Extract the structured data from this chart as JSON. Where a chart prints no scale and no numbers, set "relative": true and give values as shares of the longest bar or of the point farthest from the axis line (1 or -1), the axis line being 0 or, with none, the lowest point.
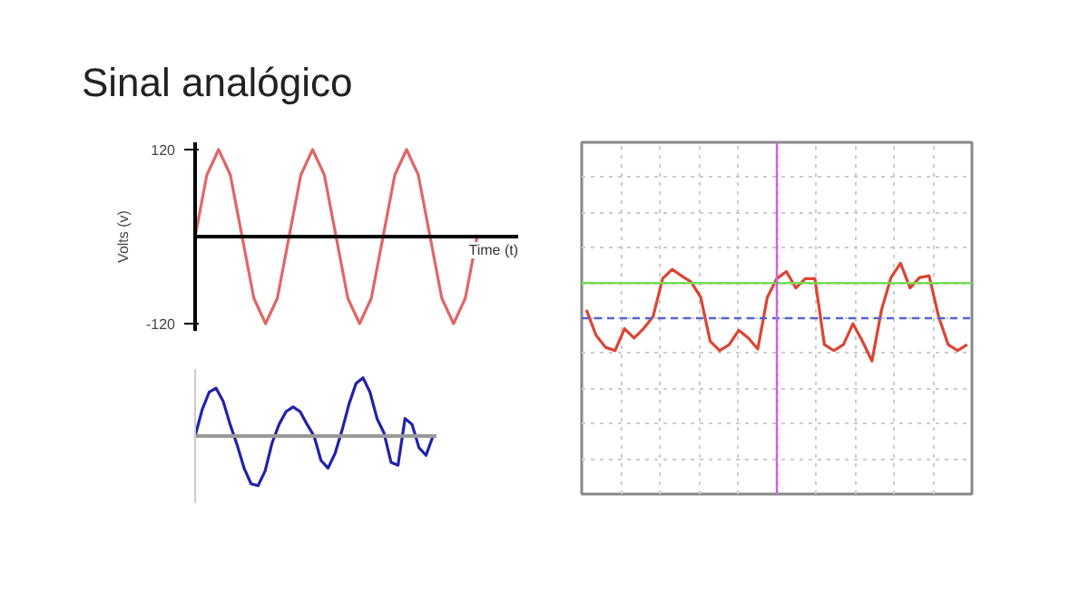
{
  "chart_data": [
    {
      "type": "line",
      "title": "Sinal analógico",
      "xlabel": "Time (t)",
      "ylabel": "Volts (v)",
      "categories": [
        null,
        null,
        null,
        null,
        null,
        null,
        null,
        null,
        null,
        null,
        null,
        null,
        null,
        null,
        null,
        null,
        null,
        null,
        null,
        null,
        null,
        null,
        null,
        null,
        null
      ],
      "series": [
        {
          "color": "#e06666",
          "values": [
            0,
            85,
            120,
            85,
            0,
            -85,
            -120,
            -85,
            0,
            85,
            120,
            85,
            0,
            -85,
            -120,
            -85,
            0,
            85,
            120,
            85,
            0,
            -85,
            -120,
            -85,
            0
          ]
        }
      ],
      "ylim": [
        -130,
        130
      ],
      "yticks": [
        -120,
        120
      ],
      "tick_labels": "y",
      "grid": false
    },
    {
      "type": "line",
      "relative": true,
      "categories": [
        null,
        null,
        null,
        null,
        null,
        null,
        null,
        null,
        null,
        null,
        null,
        null,
        null,
        null,
        null,
        null,
        null,
        null,
        null,
        null,
        null,
        null,
        null,
        null,
        null,
        null,
        null,
        null,
        null,
        null,
        null,
        null,
        null,
        null,
        null
      ],
      "series": [
        {
          "color": "#2222aa",
          "values": [
            0,
            0.45,
            0.75,
            0.82,
            0.6,
            0.2,
            -0.15,
            -0.55,
            -0.82,
            -0.85,
            -0.6,
            -0.12,
            0.2,
            0.42,
            0.5,
            0.42,
            0.2,
            0,
            -0.42,
            -0.55,
            -0.3,
            0.1,
            0.55,
            0.9,
            1.0,
            0.75,
            0.3,
            0.05,
            -0.45,
            -0.5,
            0.3,
            0.2,
            -0.2,
            -0.33,
            0
          ]
        }
      ],
      "tick_labels": false,
      "grid": false
    },
    {
      "type": "line",
      "relative": true,
      "categories": [
        null,
        null,
        null,
        null,
        null,
        null,
        null,
        null,
        null,
        null,
        null,
        null,
        null,
        null,
        null,
        null,
        null,
        null,
        null,
        null,
        null,
        null,
        null,
        null,
        null,
        null,
        null,
        null,
        null,
        null,
        null,
        null,
        null,
        null,
        null,
        null,
        null,
        null,
        null,
        null,
        null
      ],
      "series": [
        {
          "color": "#dd4433",
          "values": [
            0.15,
            -0.31,
            -0.53,
            -0.59,
            -0.19,
            -0.36,
            -0.19,
            0.03,
            0.72,
            0.89,
            0.77,
            0.66,
            0.38,
            -0.42,
            -0.59,
            -0.48,
            -0.22,
            -0.36,
            -0.56,
            0.38,
            0.72,
            0.85,
            0.55,
            0.72,
            0.72,
            -0.48,
            -0.59,
            -0.48,
            -0.1,
            -0.42,
            -0.78,
            0.15,
            0.74,
            1.0,
            0.55,
            0.74,
            0.77,
            0.03,
            -0.48,
            -0.59,
            -0.48
          ]
        }
      ],
      "ref_lines": [
        {
          "axis": "y",
          "value": 0.64,
          "color": "#77dd55",
          "line_style": "solid"
        },
        {
          "axis": "y",
          "value": 0,
          "color": "#5566cc",
          "line_style": "dashed"
        }
      ],
      "tick_labels": false,
      "grid": true
    }
  ]
}
